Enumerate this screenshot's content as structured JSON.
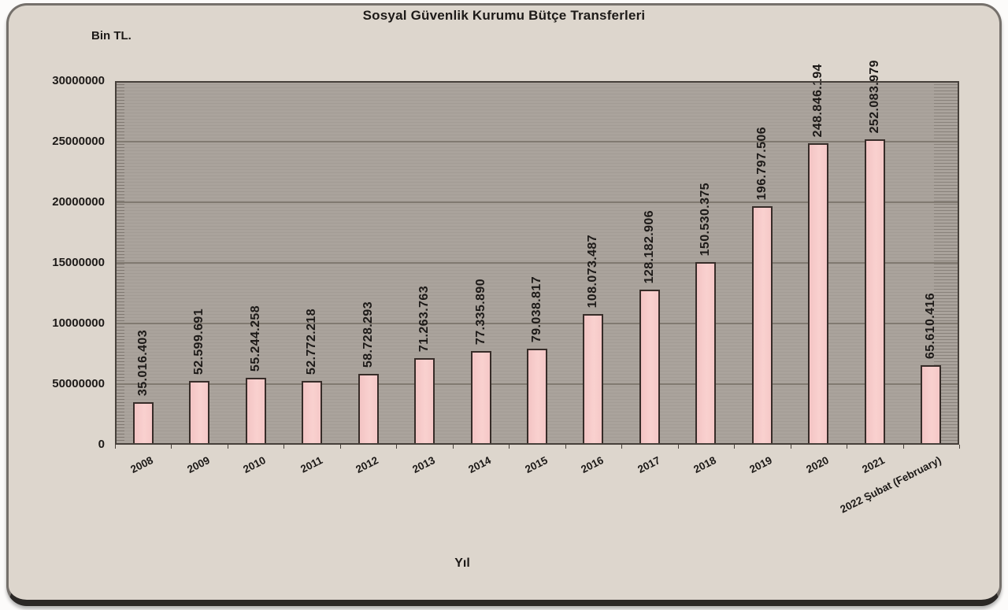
{
  "page": {
    "title": "Sosyal Güvenlik Kurumu Bütçe Transferleri",
    "y_axis_unit": "Bin TL.",
    "x_axis_title": "Yıl"
  },
  "chart_data": {
    "type": "bar",
    "title": "Sosyal Güvenlik Kurumu Bütçe Transferleri",
    "xlabel": "Yıl",
    "ylabel": "Bin TL.",
    "categories": [
      "2008",
      "2009",
      "2010",
      "2011",
      "2012",
      "2013",
      "2014",
      "2015",
      "2016",
      "2017",
      "2018",
      "2019",
      "2020",
      "2021",
      "2022 Şubat (February)"
    ],
    "values": [
      35016403,
      52599691,
      55244258,
      52772218,
      58728293,
      71263763,
      77335890,
      79038817,
      108073487,
      128182906,
      150530375,
      196797506,
      248846194,
      252083979,
      65610416
    ],
    "value_labels": [
      "35.016.403",
      "52.599.691",
      "55.244.258",
      "52.772.218",
      "58.728.293",
      "71.263.763",
      "77.335.890",
      "79.038.817",
      "108.073.487",
      "128.182.906",
      "150.530.375",
      "196.797.506",
      "248.846.194",
      "252.083.979",
      "65.610.416"
    ],
    "y_tick_labels_top_to_bottom": [
      "30000000",
      "25000000",
      "20000000",
      "15000000",
      "10000000",
      "50000000",
      "0"
    ],
    "ylim": [
      0,
      30000000
    ],
    "bar_plot_divisor": 10,
    "grid": true,
    "legend": false,
    "colors": {
      "card_background": "#ddd6cd",
      "plot_background": "#aaa39c",
      "gridline": "#817a71",
      "bar_fill": "#f7caca",
      "bar_border": "#362c28",
      "text": "#1d1a18"
    }
  }
}
